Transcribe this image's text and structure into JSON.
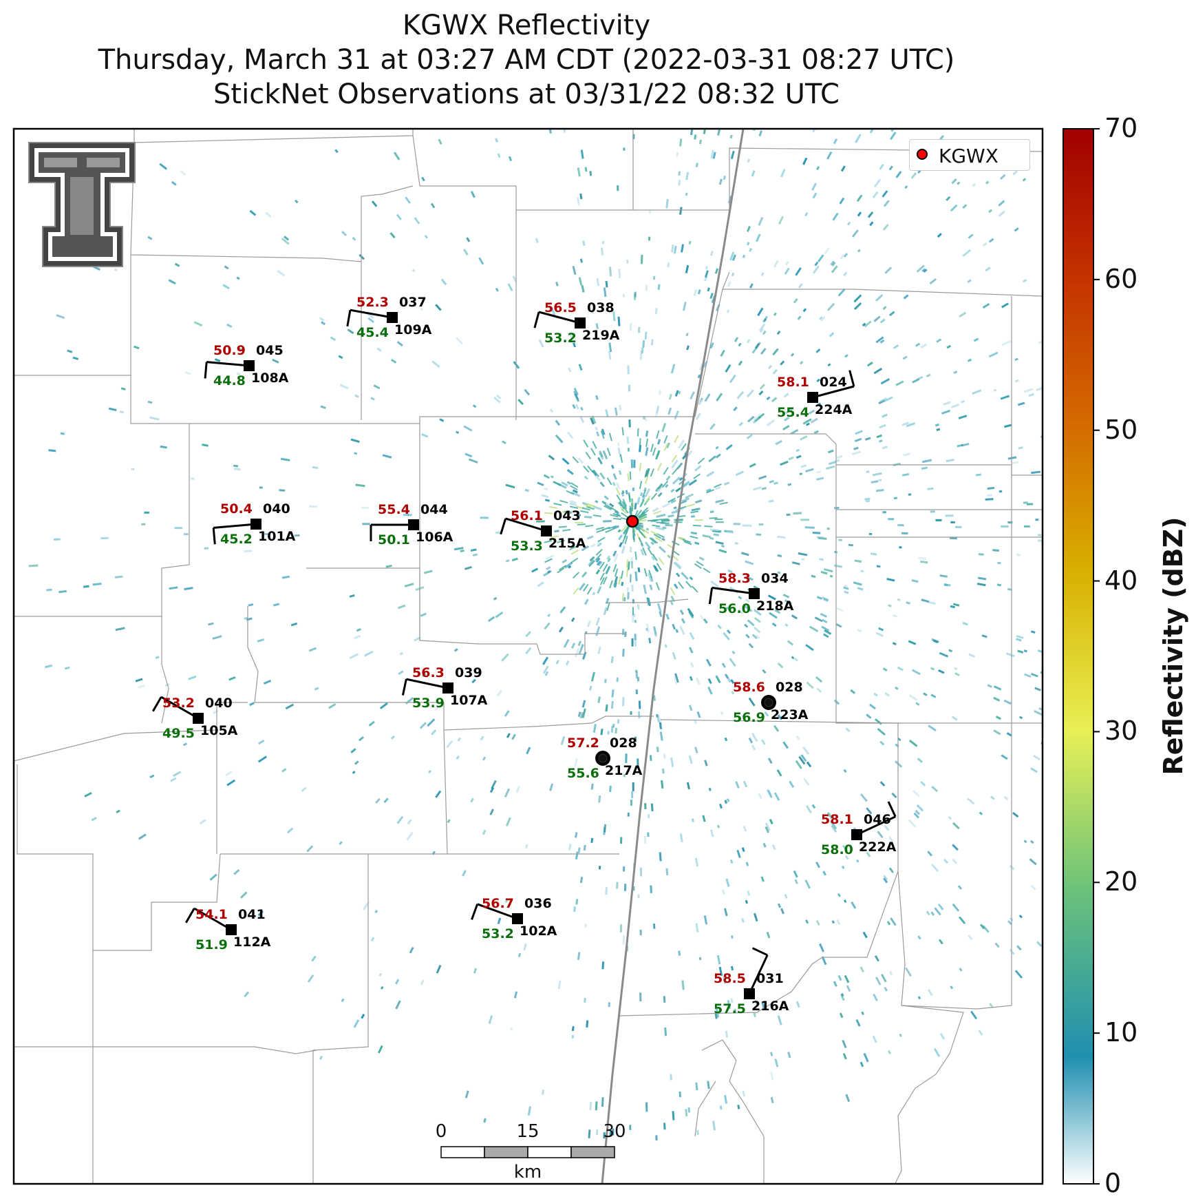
{
  "title": {
    "line1": "KGWX Reflectivity",
    "line2": "Thursday, March 31 at 03:27 AM CDT (2022-03-31 08:27 UTC)",
    "line3": "StickNet Observations at 03/31/22 08:32 UTC"
  },
  "legend": {
    "label": "KGWX",
    "color": "#ff0000"
  },
  "colorbar": {
    "title": "Reflectivity (dBZ)",
    "ticks": [
      "0",
      "10",
      "20",
      "30",
      "40",
      "50",
      "60",
      "70"
    ],
    "colors": [
      "#ffffff",
      "#1f8fb0",
      "#6cc27a",
      "#e8f055",
      "#d8b000",
      "#d46a00",
      "#c43200",
      "#a00000"
    ]
  },
  "scale_bar": {
    "labels": [
      "0",
      "15",
      "30"
    ],
    "unit": "km"
  },
  "colors": {
    "temp": "#b00000",
    "dew": "#0a6e0a",
    "id": "#000000",
    "radar_echo": "#2a9aa8"
  },
  "stations": [
    {
      "id": "037",
      "temp": "52.3",
      "dew": "45.4",
      "name": "109A"
    },
    {
      "id": "038",
      "temp": "56.5",
      "dew": "53.2",
      "name": "219A"
    },
    {
      "id": "045",
      "temp": "50.9",
      "dew": "44.8",
      "name": "108A"
    },
    {
      "id": "024",
      "temp": "58.1",
      "dew": "55.4",
      "name": "224A"
    },
    {
      "id": "040",
      "temp": "50.4",
      "dew": "45.2",
      "name": "101A"
    },
    {
      "id": "044",
      "temp": "55.4",
      "dew": "50.1",
      "name": "106A"
    },
    {
      "id": "043",
      "temp": "56.1",
      "dew": "53.3",
      "name": "215A"
    },
    {
      "id": "034",
      "temp": "58.3",
      "dew": "56.0",
      "name": "218A"
    },
    {
      "id": "039",
      "temp": "56.3",
      "dew": "53.9",
      "name": "107A"
    },
    {
      "id": "028",
      "temp": "58.6",
      "dew": "56.9",
      "name": "223A"
    },
    {
      "id": "040",
      "temp": "53.2",
      "dew": "49.5",
      "name": "105A"
    },
    {
      "id": "028",
      "temp": "57.2",
      "dew": "55.6",
      "name": "217A"
    },
    {
      "id": "046",
      "temp": "58.1",
      "dew": "58.0",
      "name": "222A"
    },
    {
      "id": "036",
      "temp": "56.7",
      "dew": "53.2",
      "name": "102A"
    },
    {
      "id": "041",
      "temp": "54.1",
      "dew": "51.9",
      "name": "112A"
    },
    {
      "id": "031",
      "temp": "58.5",
      "dew": "57.5",
      "name": "216A"
    }
  ]
}
